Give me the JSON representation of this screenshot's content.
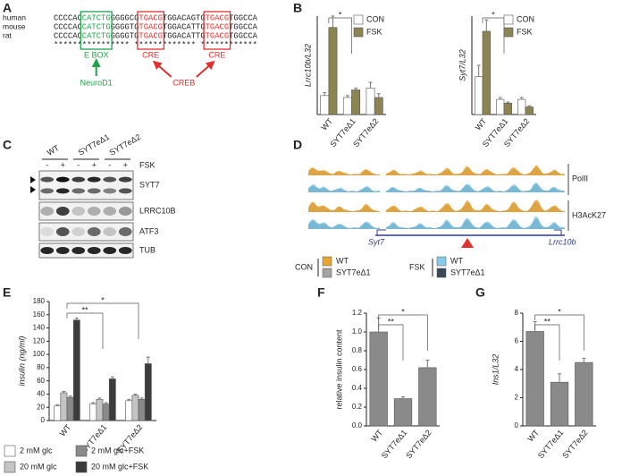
{
  "panel_labels": [
    "A",
    "B",
    "C",
    "D",
    "E",
    "F",
    "G"
  ],
  "sequence": {
    "rows": [
      {
        "species": "human",
        "segments": [
          "CCCCAC",
          "CATCTG",
          "GGGGCG",
          "TGACG",
          "TGGACAGTG",
          "TGACG",
          "TGGCCA"
        ]
      },
      {
        "species": "mouse",
        "segments": [
          "CCCCAC",
          "CATCTG",
          "GGGGTG",
          "TGACG",
          "TGGACATTG",
          "TGACG",
          "TGGCCA"
        ]
      },
      {
        "species": "rat",
        "segments": [
          "CCCCAC",
          "CATCTG",
          "GGGGTG",
          "TGACG",
          "TGGACATTG",
          "TGACG",
          "TGGCCA"
        ]
      }
    ],
    "conservation": "**************** ************* ************",
    "boxes": [
      "E BOX",
      "CRE",
      "CRE"
    ],
    "factors": [
      "NeuroD1",
      "CREB"
    ]
  },
  "blot": {
    "lanes": [
      "WT",
      "SYT7eΔ1",
      "SYT7eΔ2"
    ],
    "treatments": [
      "-",
      "+",
      "-",
      "+",
      "-",
      "+"
    ],
    "treatment_label": "FSK",
    "rows": [
      "SYT7",
      "LRRC10B",
      "ATF3",
      "TUB"
    ]
  },
  "tracks": {
    "marks": [
      "PolII",
      "H3AcK27"
    ],
    "genes": [
      "Syt7",
      "Lrrc10b"
    ],
    "legend": [
      {
        "name": "CON",
        "items": [
          {
            "name": "WT",
            "color": "#e8a534"
          },
          {
            "name": "SYT7eΔ1",
            "color": "#a3a3a3"
          }
        ]
      },
      {
        "name": "FSK",
        "items": [
          {
            "name": "WT",
            "color": "#86cbea"
          },
          {
            "name": "SYT7eΔ1",
            "color": "#38495a"
          }
        ]
      }
    ]
  },
  "chart_data": [
    {
      "type": "bar",
      "ylabel": "Lrrc10b/L32",
      "categories": [
        "WT",
        "SYT7eΔ1",
        "SYT7eΔ2"
      ],
      "ylim": [
        0,
        5.2
      ],
      "legend": true,
      "series": [
        {
          "name": "CON",
          "color": "#ffffff",
          "values": [
            1.0,
            0.9,
            1.4
          ],
          "errors": [
            0.15,
            0.1,
            0.3
          ]
        },
        {
          "name": "FSK",
          "color": "#8c8453",
          "values": [
            4.6,
            1.3,
            0.9
          ],
          "errors": [
            0.6,
            0.1,
            0.2
          ]
        }
      ],
      "significance": [
        "*"
      ]
    },
    {
      "type": "bar",
      "ylabel": "Syt7/L32",
      "categories": [
        "WT",
        "SYT7eΔ1",
        "SYT7eΔ2"
      ],
      "ylim": [
        0,
        2.6
      ],
      "legend": true,
      "series": [
        {
          "name": "CON",
          "color": "#ffffff",
          "values": [
            1.0,
            0.4,
            0.4
          ],
          "errors": [
            0.3,
            0.05,
            0.05
          ]
        },
        {
          "name": "FSK",
          "color": "#8c8453",
          "values": [
            2.2,
            0.3,
            0.2
          ],
          "errors": [
            0.3,
            0.03,
            0.03
          ]
        }
      ],
      "significance": [
        "*"
      ]
    },
    {
      "type": "bar",
      "ylabel": "insulin (ng/ml)",
      "categories": [
        "WT",
        "SYT7eΔ1",
        "SYT7eΔ2"
      ],
      "ylim": [
        0,
        180
      ],
      "yticks": [
        0,
        20,
        40,
        60,
        80,
        100,
        120,
        140,
        160,
        180
      ],
      "series": [
        {
          "name": "2 mM glc",
          "color": "#ffffff",
          "values": [
            22,
            25,
            30
          ],
          "errors": [
            2,
            2,
            2
          ]
        },
        {
          "name": "20 mM glc",
          "color": "#c4c4c4",
          "values": [
            42,
            32,
            38
          ],
          "errors": [
            2,
            2,
            2
          ]
        },
        {
          "name": "2 mM glc+FSK",
          "color": "#8a8a8a",
          "values": [
            35,
            25,
            32
          ],
          "errors": [
            2,
            2,
            2
          ]
        },
        {
          "name": "20 mM glc+FSK",
          "color": "#3c3c3c",
          "values": [
            152,
            63,
            86
          ],
          "errors": [
            3,
            3,
            10
          ]
        }
      ],
      "significance": [
        "**",
        "*"
      ]
    },
    {
      "type": "bar",
      "ylabel": "relative insulin content",
      "categories": [
        "WT",
        "SYT7eΔ1",
        "SYT7eΔ2"
      ],
      "ylim": [
        0,
        1.2
      ],
      "yticks": [
        {
          "value": 0,
          "label": "0.0"
        },
        0.2,
        0.4,
        0.6,
        0.8,
        {
          "value": 1,
          "label": "1.0"
        },
        1.2
      ],
      "color": "#8a8a8a",
      "values": [
        1.0,
        0.29,
        0.62
      ],
      "errors": [
        0.15,
        0.02,
        0.08
      ],
      "significance": [
        "**",
        "*"
      ]
    },
    {
      "type": "bar",
      "ylabel": "Ins1/L32",
      "categories": [
        "WT",
        "SYT7eΔ1",
        "SYT7eΔ2"
      ],
      "ylim": [
        0,
        8
      ],
      "yticks": [
        0,
        2,
        4,
        6,
        8
      ],
      "color": "#8a8a8a",
      "values": [
        6.7,
        3.1,
        4.5
      ],
      "errors": [
        0.7,
        0.6,
        0.3
      ],
      "significance": [
        "**",
        "*"
      ]
    }
  ]
}
